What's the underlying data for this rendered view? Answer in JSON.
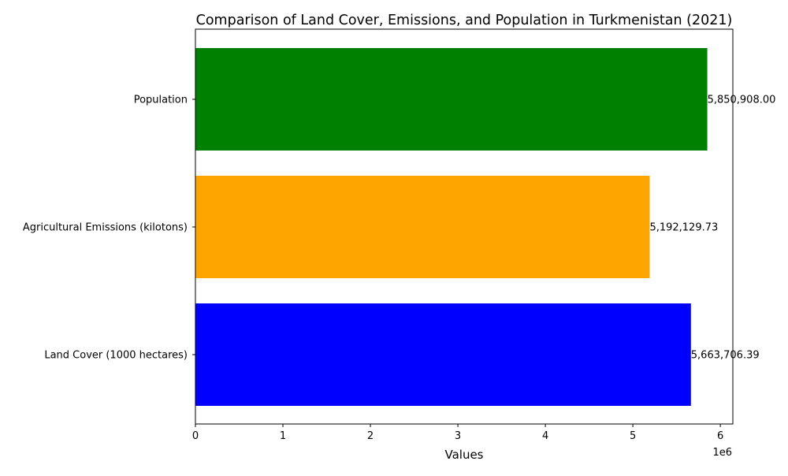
{
  "chart_data": {
    "type": "bar",
    "orientation": "horizontal",
    "title": "Comparison of Land Cover, Emissions, and Population in Turkmenistan (2021)",
    "xlabel": "Values",
    "ylabel": "",
    "x_scale_label": "1e6",
    "xlim": [
      0,
      6142953
    ],
    "x_ticks": [
      0,
      1000000,
      2000000,
      3000000,
      4000000,
      5000000,
      6000000
    ],
    "x_tick_labels": [
      "0",
      "1",
      "2",
      "3",
      "4",
      "5",
      "6"
    ],
    "categories": [
      "Land Cover (1000 hectares)",
      "Agricultural Emissions (kilotons)",
      "Population"
    ],
    "values": [
      5663706.39,
      5192129.73,
      5850908.0
    ],
    "value_labels": [
      "5,663,706.39",
      "5,192,129.73",
      "5,850,908.00"
    ],
    "colors": [
      "#0000ff",
      "#ffa500",
      "#008000"
    ],
    "grid": false,
    "legend": "none"
  }
}
